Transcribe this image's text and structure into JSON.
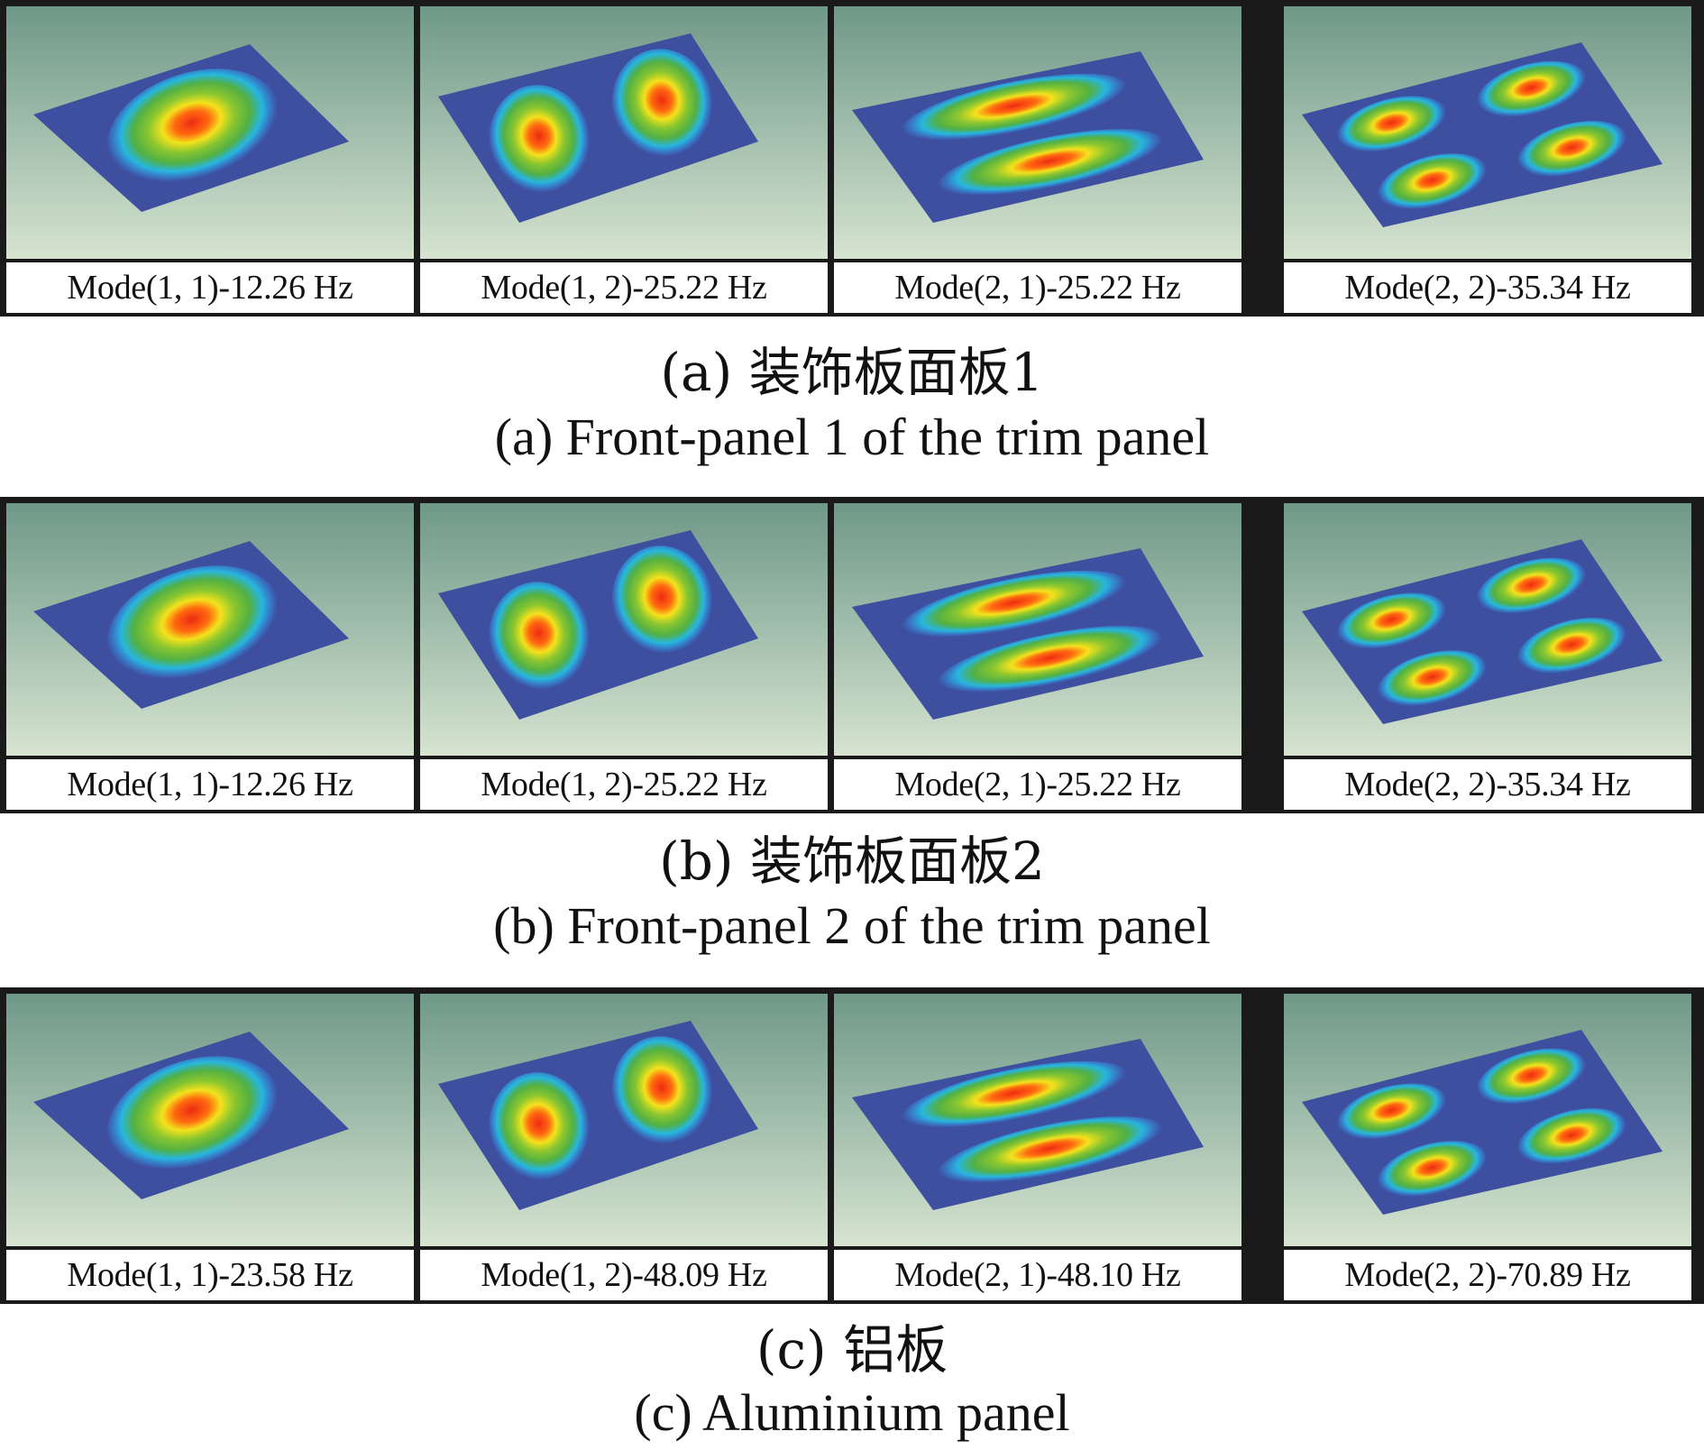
{
  "groups": [
    {
      "caption_cn": "(a) 装饰板面板1",
      "caption_en": "(a) Front-panel 1 of the trim panel",
      "modes": [
        {
          "label": "Mode(1, 1)-12.26 Hz",
          "m": 1,
          "n": 1,
          "frequency_hz": 12.26
        },
        {
          "label": "Mode(1, 2)-25.22 Hz",
          "m": 1,
          "n": 2,
          "frequency_hz": 25.22
        },
        {
          "label": "Mode(2, 1)-25.22 Hz",
          "m": 2,
          "n": 1,
          "frequency_hz": 25.22
        },
        {
          "label": "Mode(2, 2)-35.34 Hz",
          "m": 2,
          "n": 2,
          "frequency_hz": 35.34
        }
      ]
    },
    {
      "caption_cn": "(b) 装饰板面板2",
      "caption_en": "(b) Front-panel 2 of the trim panel",
      "modes": [
        {
          "label": "Mode(1, 1)-12.26 Hz",
          "m": 1,
          "n": 1,
          "frequency_hz": 12.26
        },
        {
          "label": "Mode(1, 2)-25.22 Hz",
          "m": 1,
          "n": 2,
          "frequency_hz": 25.22
        },
        {
          "label": "Mode(2, 1)-25.22 Hz",
          "m": 2,
          "n": 1,
          "frequency_hz": 25.22
        },
        {
          "label": "Mode(2, 2)-35.34 Hz",
          "m": 2,
          "n": 2,
          "frequency_hz": 35.34
        }
      ]
    },
    {
      "caption_cn": "(c) 铝板",
      "caption_en": "(c) Aluminium panel",
      "modes": [
        {
          "label": "Mode(1, 1)-23.58 Hz",
          "m": 1,
          "n": 1,
          "frequency_hz": 23.58
        },
        {
          "label": "Mode(1, 2)-48.09 Hz",
          "m": 1,
          "n": 2,
          "frequency_hz": 48.09
        },
        {
          "label": "Mode(2, 1)-48.10 Hz",
          "m": 2,
          "n": 1,
          "frequency_hz": 48.1
        },
        {
          "label": "Mode(2, 2)-70.89 Hz",
          "m": 2,
          "n": 2,
          "frequency_hz": 70.89
        }
      ]
    }
  ],
  "colors": {
    "panel_blue": "#3d4f9e",
    "background_top": "#6e9888",
    "background_bottom": "#d6e4d0",
    "frame": "#1a1a1a"
  }
}
